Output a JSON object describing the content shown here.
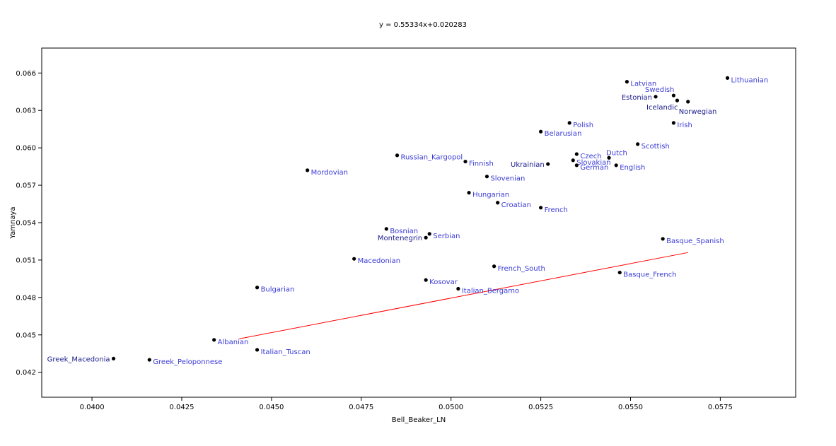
{
  "chart_data": {
    "type": "scatter",
    "title": "y = 0.55334x+0.020283",
    "xlabel": "Bell_Beaker_LN",
    "ylabel": "Yamnaya",
    "xlim": [
      0.0386,
      0.0596
    ],
    "ylim": [
      0.04,
      0.068
    ],
    "x_ticks": [
      "0.0400",
      "0.0425",
      "0.0450",
      "0.0475",
      "0.0500",
      "0.0525",
      "0.0550",
      "0.0575"
    ],
    "x_tick_values": [
      0.04,
      0.0425,
      0.045,
      0.0475,
      0.05,
      0.0525,
      0.055,
      0.0575
    ],
    "y_ticks": [
      "0.042",
      "0.045",
      "0.048",
      "0.051",
      "0.054",
      "0.057",
      "0.060",
      "0.063",
      "0.066"
    ],
    "y_tick_values": [
      0.042,
      0.045,
      0.048,
      0.051,
      0.054,
      0.057,
      0.06,
      0.063,
      0.066
    ],
    "grid": false,
    "colors": {
      "point": "#000000",
      "label_blue": "#3b3bd6",
      "label_navy": "#1a1a8c",
      "trendline": "#ff0000"
    },
    "trendline": {
      "slope": 0.55334,
      "intercept": 0.020283,
      "x_range": [
        0.0441,
        0.0566
      ]
    },
    "points": [
      {
        "name": "Greek_Macedonia",
        "x": 0.0406,
        "y": 0.0431,
        "pos": "left"
      },
      {
        "name": "Greek_Peloponnese",
        "x": 0.0416,
        "y": 0.043,
        "pos": "right"
      },
      {
        "name": "Albanian",
        "x": 0.0434,
        "y": 0.0446,
        "pos": "right"
      },
      {
        "name": "Italian_Tuscan",
        "x": 0.0446,
        "y": 0.0438,
        "pos": "right"
      },
      {
        "name": "Bulgarian",
        "x": 0.0446,
        "y": 0.0488,
        "pos": "right"
      },
      {
        "name": "Mordovian",
        "x": 0.046,
        "y": 0.0582,
        "pos": "right"
      },
      {
        "name": "Macedonian",
        "x": 0.0473,
        "y": 0.0511,
        "pos": "right"
      },
      {
        "name": "Bosnian",
        "x": 0.0482,
        "y": 0.0535,
        "pos": "right"
      },
      {
        "name": "Russian_Kargopol",
        "x": 0.0485,
        "y": 0.0594,
        "pos": "right"
      },
      {
        "name": "Montenegrin",
        "x": 0.0493,
        "y": 0.0528,
        "pos": "left"
      },
      {
        "name": "Serbian",
        "x": 0.0494,
        "y": 0.0531,
        "pos": "right"
      },
      {
        "name": "Kosovar",
        "x": 0.0493,
        "y": 0.0494,
        "pos": "right"
      },
      {
        "name": "Italian_Bergamo",
        "x": 0.0502,
        "y": 0.0487,
        "pos": "right"
      },
      {
        "name": "Finnish",
        "x": 0.0504,
        "y": 0.0589,
        "pos": "right"
      },
      {
        "name": "Hungarian",
        "x": 0.0505,
        "y": 0.0564,
        "pos": "right"
      },
      {
        "name": "Slovenian",
        "x": 0.051,
        "y": 0.0577,
        "pos": "right"
      },
      {
        "name": "French_South",
        "x": 0.0512,
        "y": 0.0505,
        "pos": "right"
      },
      {
        "name": "Croatian",
        "x": 0.0513,
        "y": 0.0556,
        "pos": "right"
      },
      {
        "name": "French",
        "x": 0.0525,
        "y": 0.0552,
        "pos": "right"
      },
      {
        "name": "Belarusian",
        "x": 0.0525,
        "y": 0.0613,
        "pos": "right"
      },
      {
        "name": "Ukrainian",
        "x": 0.0527,
        "y": 0.0587,
        "pos": "left"
      },
      {
        "name": "Polish",
        "x": 0.0533,
        "y": 0.062,
        "pos": "right"
      },
      {
        "name": "Slovakian",
        "x": 0.0534,
        "y": 0.059,
        "pos": "right"
      },
      {
        "name": "Czech",
        "x": 0.0535,
        "y": 0.0595,
        "pos": "right"
      },
      {
        "name": "German",
        "x": 0.0535,
        "y": 0.0586,
        "pos": "right"
      },
      {
        "name": "Dutch",
        "x": 0.0544,
        "y": 0.0592,
        "pos": "above"
      },
      {
        "name": "English",
        "x": 0.0546,
        "y": 0.0586,
        "pos": "right"
      },
      {
        "name": "Basque_French",
        "x": 0.0547,
        "y": 0.05,
        "pos": "right"
      },
      {
        "name": "Latvian",
        "x": 0.0549,
        "y": 0.0653,
        "pos": "right"
      },
      {
        "name": "Scottish",
        "x": 0.0552,
        "y": 0.0603,
        "pos": "right"
      },
      {
        "name": "Estonian",
        "x": 0.0557,
        "y": 0.0641,
        "pos": "left"
      },
      {
        "name": "Basque_Spanish",
        "x": 0.0559,
        "y": 0.0527,
        "pos": "right"
      },
      {
        "name": "Swedish",
        "x": 0.0562,
        "y": 0.0642,
        "pos": "above-left"
      },
      {
        "name": "Irish",
        "x": 0.0562,
        "y": 0.062,
        "pos": "right"
      },
      {
        "name": "Icelandic",
        "x": 0.0563,
        "y": 0.0638,
        "pos": "below-left"
      },
      {
        "name": "Norwegian",
        "x": 0.0566,
        "y": 0.0637,
        "pos": "below-right"
      },
      {
        "name": "Lithuanian",
        "x": 0.0577,
        "y": 0.0656,
        "pos": "right"
      }
    ]
  }
}
